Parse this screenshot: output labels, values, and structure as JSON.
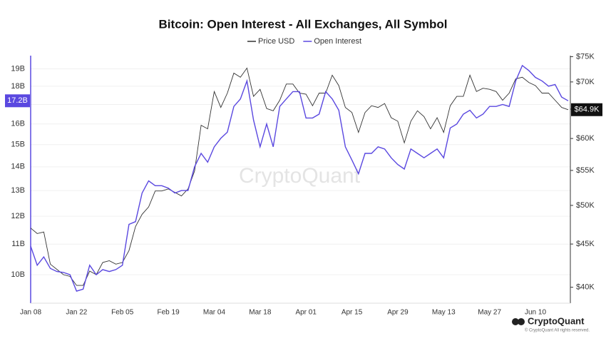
{
  "chart_data": {
    "type": "line",
    "title": "Bitcoin: Open Interest - All Exchanges, All Symbol",
    "watermark": "CryptoQuant",
    "footer": {
      "brand": "CryptoQuant",
      "note": "© CryptoQuant All rights reserved."
    },
    "categories": [
      "Jan 08",
      null,
      null,
      null,
      null,
      null,
      null,
      "Jan 22",
      null,
      null,
      null,
      null,
      null,
      null,
      "Feb 05",
      null,
      null,
      null,
      null,
      null,
      null,
      "Feb 19",
      null,
      null,
      null,
      null,
      null,
      null,
      "Mar 04",
      null,
      null,
      null,
      null,
      null,
      null,
      "Mar 18",
      null,
      null,
      null,
      null,
      null,
      null,
      "Apr 01",
      null,
      null,
      null,
      null,
      null,
      null,
      "Apr 15",
      null,
      null,
      null,
      null,
      null,
      null,
      "Apr 29",
      null,
      null,
      null,
      null,
      null,
      null,
      "May 13",
      null,
      null,
      null,
      null,
      null,
      null,
      "May 27",
      null,
      null,
      null,
      null,
      null,
      null,
      "Jun 10",
      null,
      null,
      null,
      null,
      null
    ],
    "series": [
      {
        "name": "Price USD",
        "color": "#333333",
        "axis": "y2",
        "values": [
          47.0,
          46.3,
          46.5,
          42.6,
          42.0,
          41.4,
          41.2,
          40.2,
          40.2,
          41.8,
          41.4,
          42.8,
          43.0,
          42.6,
          42.8,
          44.2,
          47.2,
          48.8,
          49.8,
          52.0,
          52.0,
          52.3,
          51.8,
          51.3,
          52.3,
          54.9,
          62.2,
          61.6,
          68.2,
          65.3,
          67.9,
          71.7,
          70.9,
          72.7,
          67.3,
          68.6,
          65.1,
          64.7,
          66.6,
          69.6,
          69.6,
          67.9,
          67.7,
          65.6,
          67.9,
          67.9,
          71.3,
          69.3,
          65.3,
          64.4,
          61.0,
          64.4,
          65.6,
          65.3,
          66.0,
          63.5,
          62.9,
          59.3,
          62.9,
          64.7,
          63.7,
          61.6,
          63.5,
          61.0,
          65.6,
          67.3,
          67.3,
          71.3,
          68.2,
          68.8,
          68.6,
          68.2,
          66.6,
          67.9,
          70.6,
          70.9,
          69.9,
          69.3,
          67.9,
          67.9,
          66.6,
          65.3,
          64.9
        ],
        "value_labels": [
          null,
          null,
          null,
          null,
          null,
          null,
          null,
          null,
          null,
          null,
          null,
          null,
          null,
          null,
          null,
          null,
          null,
          null,
          null,
          null,
          null,
          null,
          null,
          null,
          null,
          null,
          null,
          null,
          null,
          null,
          null,
          null,
          null,
          null,
          null,
          null,
          null,
          null,
          null,
          null,
          null,
          null,
          null,
          null,
          null,
          null,
          null,
          null,
          null,
          null,
          null,
          null,
          null,
          null,
          null,
          null,
          null,
          null,
          null,
          null,
          null,
          null,
          null,
          null,
          null,
          null,
          null,
          null,
          null,
          null,
          null,
          null,
          null,
          null,
          null,
          null,
          null,
          null,
          null,
          null,
          null,
          null,
          "$64.9K"
        ]
      },
      {
        "name": "Open Interest",
        "color": "#5a48e0",
        "axis": "y",
        "values": [
          10.93,
          10.3,
          10.57,
          10.2,
          10.1,
          10.07,
          10.0,
          9.5,
          9.56,
          10.3,
          10.0,
          10.16,
          10.1,
          10.16,
          10.3,
          11.7,
          11.8,
          12.9,
          13.4,
          13.2,
          13.2,
          13.1,
          12.9,
          13.0,
          13.0,
          14.0,
          14.6,
          14.2,
          14.9,
          15.3,
          15.6,
          16.9,
          17.3,
          18.3,
          16.2,
          14.9,
          16.0,
          14.9,
          16.9,
          17.3,
          17.7,
          17.7,
          16.3,
          16.3,
          16.5,
          17.7,
          17.3,
          16.7,
          14.9,
          14.3,
          13.7,
          14.6,
          14.6,
          14.9,
          14.8,
          14.4,
          14.1,
          13.9,
          14.8,
          14.6,
          14.4,
          14.6,
          14.8,
          14.4,
          15.8,
          16.0,
          16.5,
          16.7,
          16.3,
          16.5,
          16.9,
          16.9,
          17.0,
          16.9,
          18.3,
          19.2,
          18.9,
          18.5,
          18.3,
          18.0,
          18.1,
          17.4,
          17.2
        ],
        "value_labels": [
          null,
          null,
          null,
          null,
          null,
          null,
          null,
          null,
          null,
          null,
          null,
          null,
          null,
          null,
          null,
          null,
          null,
          null,
          null,
          null,
          null,
          null,
          null,
          null,
          null,
          null,
          null,
          null,
          null,
          null,
          null,
          null,
          null,
          null,
          null,
          null,
          null,
          null,
          null,
          null,
          null,
          null,
          null,
          null,
          null,
          null,
          null,
          null,
          null,
          null,
          null,
          null,
          null,
          null,
          null,
          null,
          null,
          null,
          null,
          null,
          null,
          null,
          null,
          null,
          null,
          null,
          null,
          null,
          null,
          null,
          null,
          null,
          null,
          null,
          null,
          null,
          null,
          null,
          null,
          null,
          null,
          null,
          "17.2B"
        ]
      }
    ],
    "ylim": [
      9.15,
      19.8
    ],
    "ylog": true,
    "yticks": [
      {
        "value": 10,
        "label": "10B"
      },
      {
        "value": 11,
        "label": "11B"
      },
      {
        "value": 12,
        "label": "12B"
      },
      {
        "value": 13,
        "label": "13B"
      },
      {
        "value": 14,
        "label": "14B"
      },
      {
        "value": 15,
        "label": "15B"
      },
      {
        "value": 16,
        "label": "16B"
      },
      {
        "value": 17,
        "label": "17B"
      },
      {
        "value": 18,
        "label": "18B"
      },
      {
        "value": 19,
        "label": "19B"
      }
    ],
    "y2lim": [
      38.3,
      75.2
    ],
    "y2log": true,
    "y2ticks": [
      {
        "value": 40,
        "label": "$40K"
      },
      {
        "value": 45,
        "label": "$45K"
      },
      {
        "value": 50,
        "label": "$50K"
      },
      {
        "value": 55,
        "label": "$55K"
      },
      {
        "value": 60,
        "label": "$60K"
      },
      {
        "value": 65,
        "label": "$65K"
      },
      {
        "value": 70,
        "label": "$70K"
      },
      {
        "value": 75,
        "label": "$75K"
      }
    ],
    "grid": true
  }
}
